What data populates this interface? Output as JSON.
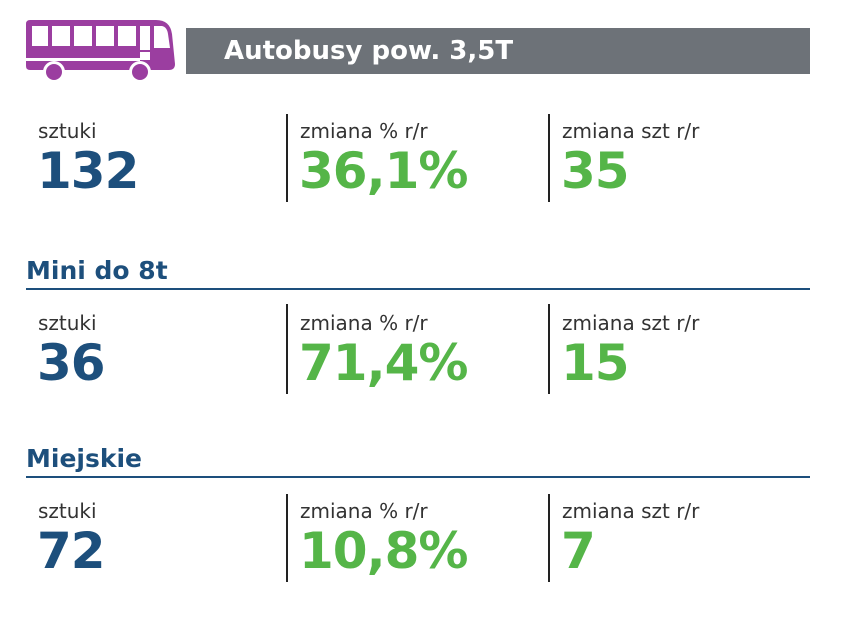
{
  "header": {
    "title": "Autobusy pow. 3,5T",
    "icon": "bus-icon",
    "icon_color": "#9b3ea0",
    "bar_color": "#6d7278"
  },
  "colors": {
    "blue": "#1d4f7c",
    "green": "#55b548"
  },
  "summary": {
    "units_label": "sztuki",
    "units_value": "132",
    "pct_label": "zmiana % r/r",
    "pct_value": "36,1%",
    "count_label": "zmiana szt r/r",
    "count_value": "35"
  },
  "sections": [
    {
      "title": "Mini do 8t",
      "units_label": "sztuki",
      "units_value": "36",
      "pct_label": "zmiana % r/r",
      "pct_value": "71,4%",
      "count_label": "zmiana szt r/r",
      "count_value": "15"
    },
    {
      "title": "Miejskie",
      "units_label": "sztuki",
      "units_value": "72",
      "pct_label": "zmiana % r/r",
      "pct_value": "10,8%",
      "count_label": "zmiana szt r/r",
      "count_value": "7"
    }
  ]
}
